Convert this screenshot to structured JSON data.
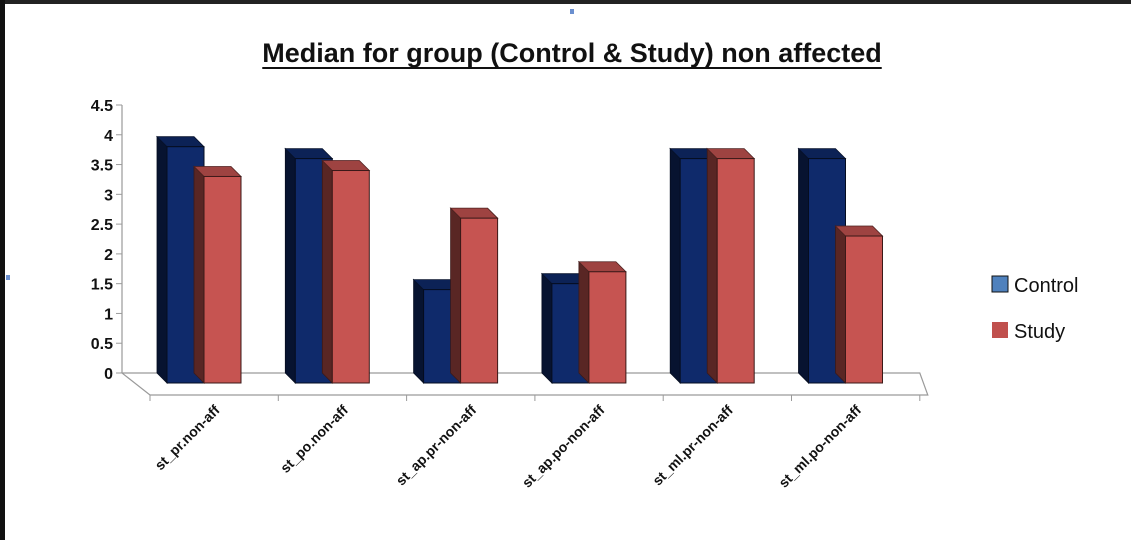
{
  "chart_data": {
    "type": "bar",
    "title": "Median for group (Control & Study) non affected",
    "xlabel": "",
    "ylabel": "",
    "ylim": [
      0,
      4.5
    ],
    "ytick_labels": [
      "0",
      "0.5",
      "1",
      "1.5",
      "2",
      "2.5",
      "3",
      "3.5",
      "4",
      "4.5"
    ],
    "categories": [
      "st_pr.non-aff",
      "st_po.non-aff",
      "st_ap.pr-non-aff",
      "st_ap.po-non-aff",
      "st_ml.pr-non-aff",
      "st_ml.po-non-aff"
    ],
    "series": [
      {
        "name": "Control",
        "values": [
          3.8,
          3.6,
          1.4,
          1.5,
          3.6,
          3.6
        ]
      },
      {
        "name": "Study",
        "values": [
          3.3,
          3.4,
          2.6,
          1.7,
          3.6,
          2.3
        ]
      }
    ],
    "legend_position": "right",
    "grid": false,
    "style": "3d-clustered-column"
  },
  "colors": {
    "Control": "#0f2a6b",
    "Study": "#c65451",
    "legend_Control": "#4f81bd",
    "legend_Study": "#c0504d"
  }
}
